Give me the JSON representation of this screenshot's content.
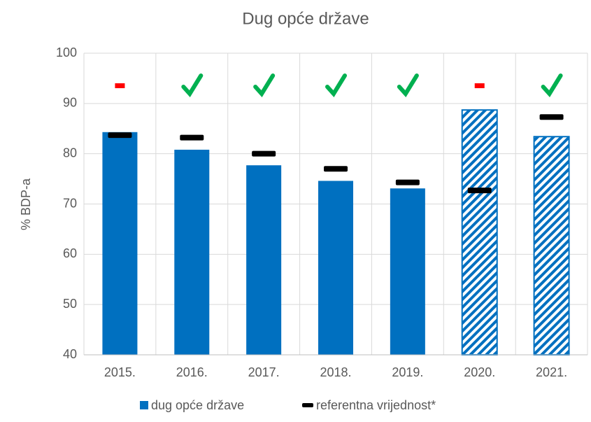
{
  "chart_data": {
    "type": "bar",
    "title": "Dug opće države",
    "y_label": "% BDP-a",
    "categories": [
      "2015.",
      "2016.",
      "2017.",
      "2018.",
      "2019.",
      "2020.",
      "2021."
    ],
    "series": [
      {
        "name": "dug opće države",
        "color": "#0070c0",
        "values": [
          84.3,
          80.8,
          77.7,
          74.6,
          73.1,
          88.7,
          83.4
        ]
      },
      {
        "name": "referentna vrijednost*",
        "color": "#000000",
        "values": [
          83.7,
          83.2,
          80.0,
          77.0,
          74.3,
          72.7,
          87.3
        ]
      }
    ],
    "ylim": [
      40,
      100
    ],
    "yticks": [
      40,
      50,
      60,
      70,
      80,
      90,
      100
    ],
    "grid": true
  }
}
